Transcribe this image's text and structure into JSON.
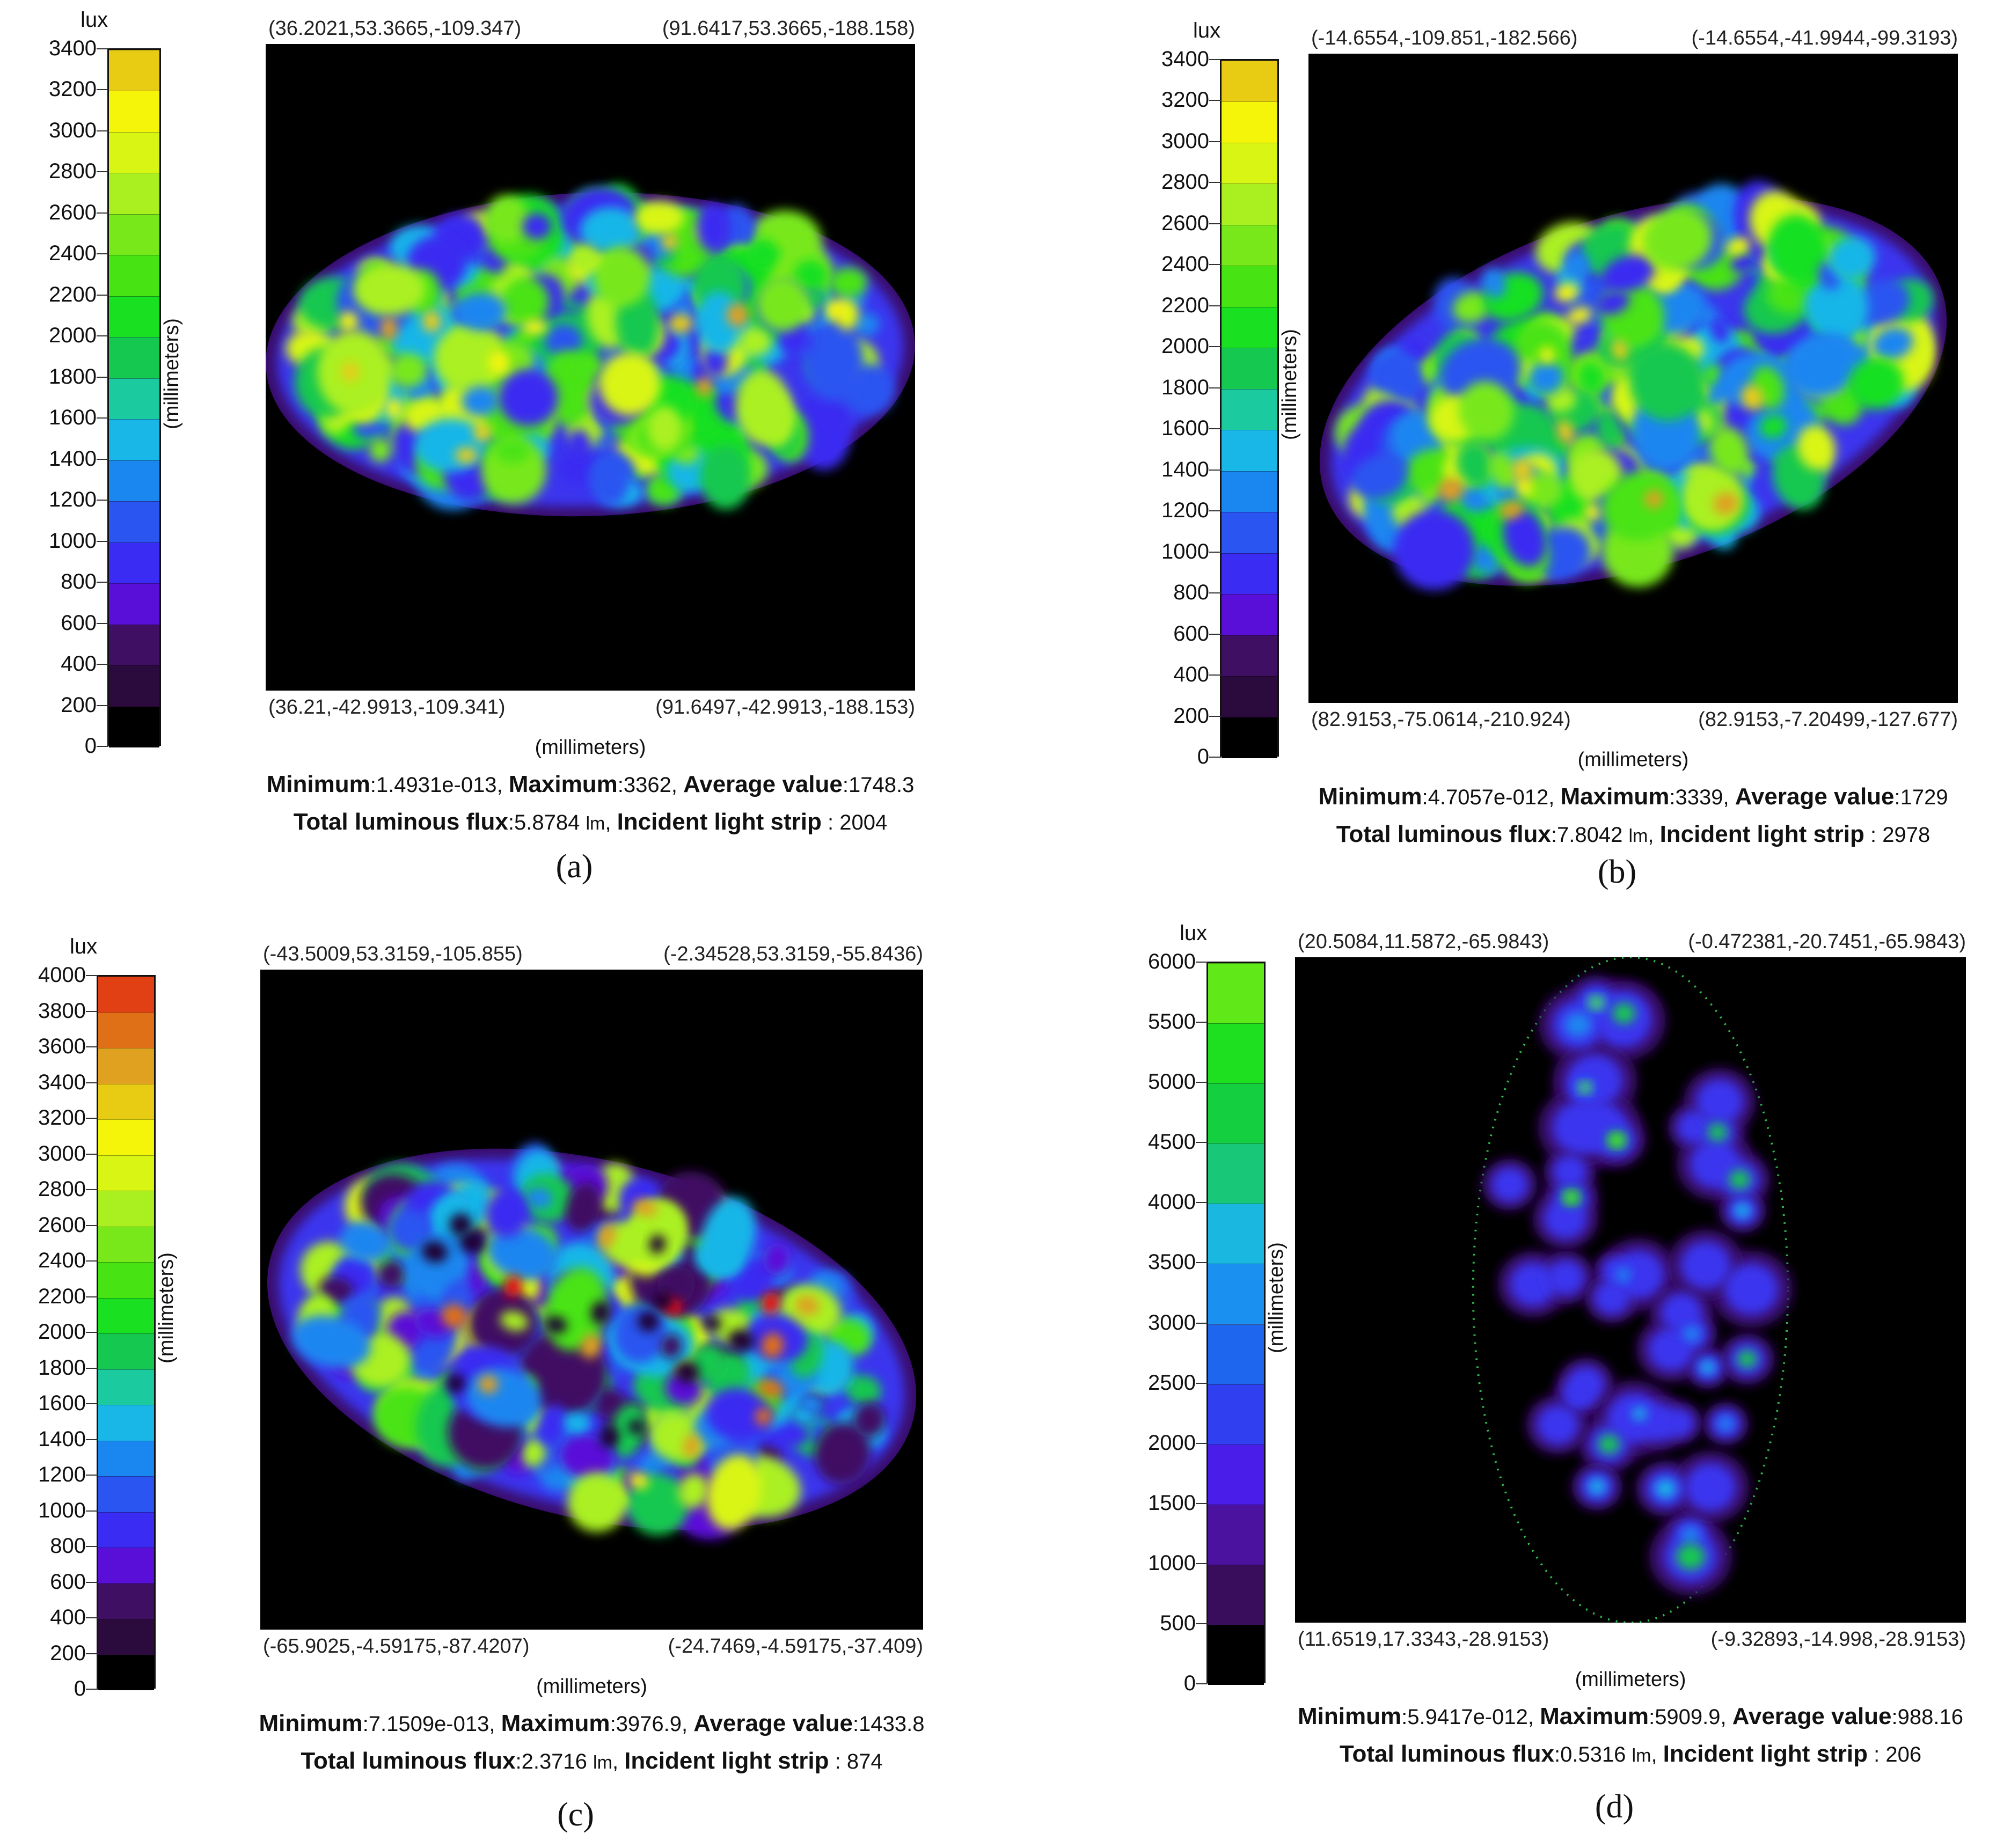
{
  "chart_data": [
    {
      "type": "heatmap",
      "panel": "(a)",
      "unit": "lux",
      "colorbar_ticks": [
        0,
        200,
        400,
        600,
        800,
        1000,
        1200,
        1400,
        1600,
        1800,
        2000,
        2200,
        2400,
        2600,
        2800,
        3000,
        3200,
        3400
      ],
      "colorbar_colors": [
        "#000000",
        "#2b0a3d",
        "#3f0f63",
        "#5a0fd8",
        "#3a2cf2",
        "#2a55f0",
        "#1a86f0",
        "#19b6e8",
        "#1ccaa0",
        "#14c850",
        "#19e020",
        "#48e312",
        "#78e81a",
        "#aaf020",
        "#d8f514",
        "#f5f50a",
        "#e8cc14",
        "#e0a020"
      ],
      "max_color_value": 3400,
      "corners": {
        "top_left": "(36.2021,53.3665,-109.347)",
        "top_right": "(91.6417,53.3665,-188.158)",
        "bottom_left": "(36.21,-42.9913,-109.341)",
        "bottom_right": "(91.6497,-42.9913,-188.153)"
      },
      "axis_unit_vertical": "(millimeters)",
      "axis_unit_horizontal": "(millimeters)",
      "minimum": "1.4931e-013",
      "maximum": "3362",
      "average": "1748.3",
      "total_flux": "5.8784",
      "flux_unit": "lm",
      "incident_strip": "2004",
      "spot": {
        "cx": 0.5,
        "cy": 0.48,
        "rx": 0.5,
        "ry": 0.25,
        "rot": -2,
        "level": "high"
      }
    },
    {
      "type": "heatmap",
      "panel": "(b)",
      "unit": "lux",
      "colorbar_ticks": [
        0,
        200,
        400,
        600,
        800,
        1000,
        1200,
        1400,
        1600,
        1800,
        2000,
        2200,
        2400,
        2600,
        2800,
        3000,
        3200,
        3400
      ],
      "colorbar_colors": [
        "#000000",
        "#2b0a3d",
        "#3f0f63",
        "#5a0fd8",
        "#3a2cf2",
        "#2a55f0",
        "#1a86f0",
        "#19b6e8",
        "#1ccaa0",
        "#14c850",
        "#19e020",
        "#48e312",
        "#78e81a",
        "#aaf020",
        "#d8f514",
        "#f5f50a",
        "#e8cc14",
        "#e0a020"
      ],
      "max_color_value": 3400,
      "corners": {
        "top_left": "(-14.6554,-109.851,-182.566)",
        "top_right": "(-14.6554,-41.9944,-99.3193)",
        "bottom_left": "(82.9153,-75.0614,-210.924)",
        "bottom_right": "(82.9153,-7.20499,-127.677)"
      },
      "axis_unit_vertical": "(millimeters)",
      "axis_unit_horizontal": "(millimeters)",
      "minimum": "4.7057e-012",
      "maximum": "3339",
      "average": "1729",
      "total_flux": "7.8042",
      "flux_unit": "lm",
      "incident_strip": "2978",
      "spot": {
        "cx": 0.5,
        "cy": 0.52,
        "rx": 0.5,
        "ry": 0.27,
        "rot": -18,
        "level": "high"
      }
    },
    {
      "type": "heatmap",
      "panel": "(c)",
      "unit": "lux",
      "colorbar_ticks": [
        0,
        200,
        400,
        600,
        800,
        1000,
        1200,
        1400,
        1600,
        1800,
        2000,
        2200,
        2400,
        2600,
        2800,
        3000,
        3200,
        3400,
        3600,
        3800,
        4000
      ],
      "colorbar_colors": [
        "#000000",
        "#2b0a3d",
        "#3f0f63",
        "#5a0fd8",
        "#3a2cf2",
        "#2a55f0",
        "#1a86f0",
        "#19b6e8",
        "#1ccaa0",
        "#14c850",
        "#19e020",
        "#48e312",
        "#78e81a",
        "#aaf020",
        "#d8f514",
        "#f5f50a",
        "#e8cc14",
        "#e0a020",
        "#e07018",
        "#e04014",
        "#f01010"
      ],
      "max_color_value": 4000,
      "corners": {
        "top_left": "(-43.5009,53.3159,-105.855)",
        "top_right": "(-2.34528,53.3159,-55.8436)",
        "bottom_left": "(-65.9025,-4.59175,-87.4207)",
        "bottom_right": "(-24.7469,-4.59175,-37.409)"
      },
      "axis_unit_vertical": "(millimeters)",
      "axis_unit_horizontal": "(millimeters)",
      "minimum": "7.1509e-013",
      "maximum": "3976.9",
      "average": "1433.8",
      "total_flux": "2.3716",
      "flux_unit": "lm",
      "incident_strip": "874",
      "spot": {
        "cx": 0.5,
        "cy": 0.56,
        "rx": 0.5,
        "ry": 0.27,
        "rot": 14,
        "level": "mid"
      }
    },
    {
      "type": "heatmap",
      "panel": "(d)",
      "unit": "lux",
      "colorbar_ticks": [
        0,
        500,
        1000,
        1500,
        2000,
        2500,
        3000,
        3500,
        4000,
        4500,
        5000,
        5500,
        6000
      ],
      "colorbar_colors": [
        "#000000",
        "#3a0d5c",
        "#4b12a0",
        "#4a1de8",
        "#3040f0",
        "#1f66ee",
        "#1a90f0",
        "#1ab8e0",
        "#18c878",
        "#14d040",
        "#1ee020",
        "#60e818"
      ],
      "max_color_value": 6000,
      "corners": {
        "top_left": "(20.5084,11.5872,-65.9843)",
        "top_right": "(-0.472381,-20.7451,-65.9843)",
        "bottom_left": "(11.6519,17.3343,-28.9153)",
        "bottom_right": "(-9.32893,-14.998,-28.9153)"
      },
      "axis_unit_vertical": "(millimeters)",
      "axis_unit_horizontal": "(millimeters)",
      "minimum": "5.9417e-012",
      "maximum": "5909.9",
      "average": "988.16",
      "total_flux": "0.5316",
      "flux_unit": "lm",
      "incident_strip": "206",
      "spot": {
        "cx": 0.5,
        "cy": 0.5,
        "rx": 0.23,
        "ry": 0.5,
        "rot": 0,
        "level": "low"
      }
    }
  ],
  "labels": {
    "minimum": "Minimum",
    "maximum": "Maximum",
    "average": "Average value",
    "total_flux": "Total luminous flux",
    "incident_strip": "Incident light strip"
  }
}
